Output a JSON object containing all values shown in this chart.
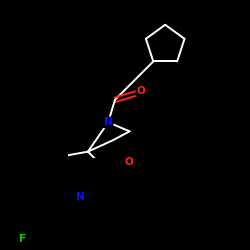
{
  "background_color": "#000000",
  "bond_color": "#ffffff",
  "atom_colors": {
    "N": "#1010ff",
    "O": "#ff2020",
    "F": "#00cc00",
    "C": "#ffffff"
  },
  "figsize": [
    2.5,
    2.5
  ],
  "dpi": 100,
  "lw": 1.4
}
